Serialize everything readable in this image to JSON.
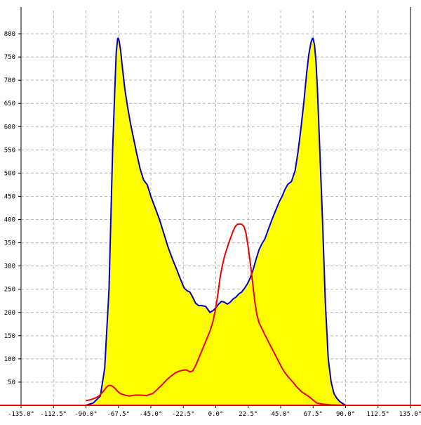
{
  "chart_data": {
    "type": "area",
    "title": "",
    "xlabel": "",
    "ylabel": "",
    "xlim": [
      -135,
      135
    ],
    "ylim": [
      0,
      850
    ],
    "grid": true,
    "x_ticks": [
      {
        "value": -135,
        "label": "-135.0°"
      },
      {
        "value": -112.5,
        "label": "-112.5°"
      },
      {
        "value": -90,
        "label": "-90.0°"
      },
      {
        "value": -67.5,
        "label": "-67.5°"
      },
      {
        "value": -45,
        "label": "-45.0°"
      },
      {
        "value": -22.5,
        "label": "-22.5°"
      },
      {
        "value": 0,
        "label": "0.0°"
      },
      {
        "value": 22.5,
        "label": "22.5°"
      },
      {
        "value": 45,
        "label": "45.0°"
      },
      {
        "value": 67.5,
        "label": "67.5°"
      },
      {
        "value": 90,
        "label": "90.0°"
      },
      {
        "value": 112.5,
        "label": "112.5°"
      },
      {
        "value": 135,
        "label": "135.0°"
      }
    ],
    "y_ticks": [
      {
        "value": 50,
        "label": "50"
      },
      {
        "value": 100,
        "label": "100"
      },
      {
        "value": 150,
        "label": "150"
      },
      {
        "value": 200,
        "label": "200"
      },
      {
        "value": 250,
        "label": "250"
      },
      {
        "value": 300,
        "label": "300"
      },
      {
        "value": 350,
        "label": "350"
      },
      {
        "value": 400,
        "label": "400"
      },
      {
        "value": 450,
        "label": "450"
      },
      {
        "value": 500,
        "label": "500"
      },
      {
        "value": 550,
        "label": "550"
      },
      {
        "value": 600,
        "label": "600"
      },
      {
        "value": 650,
        "label": "650"
      },
      {
        "value": 700,
        "label": "700"
      },
      {
        "value": 750,
        "label": "750"
      },
      {
        "value": 800,
        "label": "800"
      }
    ],
    "colors": {
      "fill": "#ffff00",
      "blue_line": "#0000cc",
      "red_line": "#ee0000",
      "grid": "#b8b8b8",
      "axis": "#000000",
      "baseline": "#ee0000"
    },
    "series": [
      {
        "color": "blue",
        "filled": true,
        "x": [
          -90,
          -85,
          -80,
          -77,
          -74,
          -71.5,
          -70,
          -69,
          -68,
          -67.5,
          -67,
          -66,
          -65,
          -63,
          -61,
          -59,
          -57,
          -55,
          -52.5,
          -50,
          -47.5,
          -45,
          -42,
          -39,
          -36,
          -33,
          -30,
          -27,
          -24.5,
          -22,
          -20,
          -18,
          -16,
          -14,
          -12,
          -10,
          -7,
          -4,
          -1.5,
          0,
          2,
          4,
          6,
          8,
          10,
          12,
          14,
          16,
          18,
          20,
          22,
          24,
          26,
          28,
          30,
          32,
          34,
          36,
          38,
          40,
          42,
          44,
          46,
          48,
          50,
          52.5,
          55,
          57,
          59,
          61,
          63,
          64.5,
          66,
          67,
          67.5,
          68.5,
          69.5,
          70.5,
          72,
          74,
          76,
          78,
          80,
          82,
          84,
          86,
          88,
          90
        ],
        "y": [
          0,
          5,
          20,
          80,
          250,
          550,
          680,
          760,
          790,
          790,
          785,
          765,
          735,
          680,
          640,
          605,
          575,
          545,
          510,
          485,
          475,
          450,
          425,
          400,
          370,
          340,
          315,
          292,
          272,
          253,
          247,
          244,
          233,
          220,
          215,
          215,
          213,
          200,
          205,
          210,
          218,
          224,
          222,
          218,
          222,
          229,
          233,
          240,
          244,
          252,
          262,
          275,
          293,
          315,
          335,
          348,
          358,
          375,
          392,
          408,
          423,
          438,
          450,
          465,
          476,
          482,
          505,
          545,
          595,
          650,
          715,
          755,
          781,
          790,
          790,
          775,
          740,
          680,
          560,
          400,
          220,
          100,
          50,
          25,
          15,
          8,
          4,
          0
        ]
      },
      {
        "color": "red",
        "filled": false,
        "x": [
          -90,
          -87,
          -84,
          -81,
          -78,
          -75.5,
          -74,
          -72,
          -70,
          -68,
          -66,
          -63,
          -60,
          -56,
          -52,
          -48,
          -44,
          -42,
          -40,
          -37,
          -34,
          -31,
          -28,
          -25,
          -22,
          -20,
          -18,
          -16,
          -14,
          -12,
          -10,
          -8,
          -6,
          -4,
          -2,
          0,
          1.5,
          3,
          4.5,
          6,
          7.5,
          9,
          10.5,
          12,
          13.5,
          15,
          16.5,
          18,
          19.5,
          21,
          22.5,
          24,
          25.5,
          27,
          28.5,
          30,
          32,
          34,
          36,
          38,
          40,
          42,
          44,
          46,
          48,
          50,
          52,
          54,
          56,
          58,
          60,
          62,
          64,
          66,
          68,
          70,
          73,
          76,
          80,
          84,
          88,
          90
        ],
        "y": [
          10,
          12,
          15,
          20,
          30,
          40,
          43,
          42,
          37,
          30,
          25,
          22,
          20,
          22,
          22,
          21,
          25,
          30,
          36,
          45,
          55,
          63,
          70,
          74,
          76,
          76,
          72,
          74,
          85,
          100,
          115,
          130,
          145,
          160,
          180,
          210,
          240,
          275,
          300,
          320,
          335,
          350,
          362,
          375,
          385,
          390,
          390,
          390,
          385,
          370,
          340,
          305,
          265,
          225,
          195,
          178,
          165,
          152,
          140,
          128,
          116,
          104,
          92,
          80,
          70,
          62,
          55,
          48,
          40,
          34,
          28,
          24,
          20,
          15,
          10,
          5,
          3,
          2,
          1,
          0.5,
          0.2,
          0
        ]
      }
    ]
  }
}
